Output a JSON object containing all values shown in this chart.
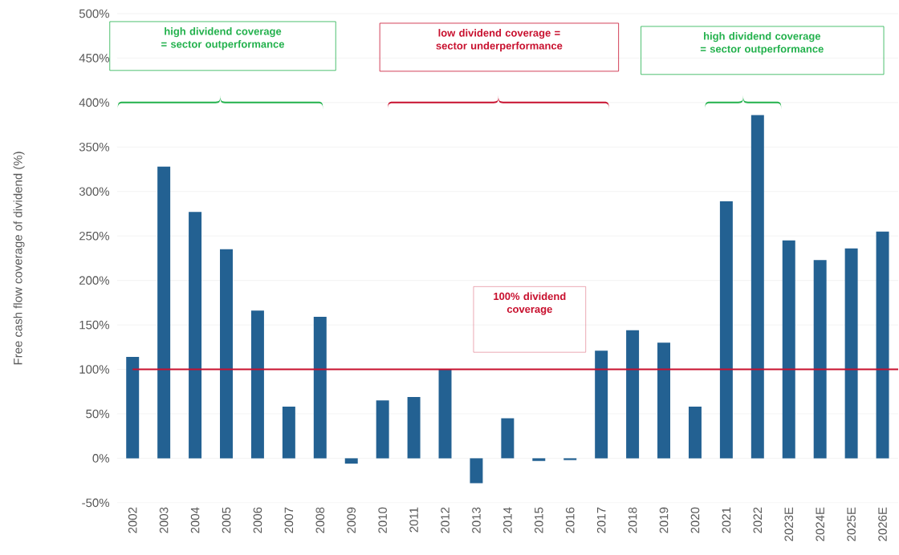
{
  "chart_data": {
    "type": "bar",
    "ylabel": "Free cash flow coverage of dividend (%)",
    "categories": [
      "2002",
      "2003",
      "2004",
      "2005",
      "2006",
      "2007",
      "2008",
      "2009",
      "2010",
      "2011",
      "2012",
      "2013",
      "2014",
      "2015",
      "2016",
      "2017",
      "2018",
      "2019",
      "2020",
      "2021",
      "2022",
      "2023E",
      "2024E",
      "2025E",
      "2026E"
    ],
    "values": [
      114,
      328,
      277,
      235,
      166,
      58,
      159,
      -6,
      65,
      69,
      100,
      -28,
      45,
      -3,
      -2,
      121,
      144,
      130,
      58,
      289,
      386,
      245,
      223,
      236,
      255
    ],
    "color": "#236192",
    "ylim": [
      -50,
      500
    ],
    "yticks": [
      {
        "value": -50,
        "label": "-50%"
      },
      {
        "value": 0,
        "label": "0%"
      },
      {
        "value": 50,
        "label": "50%"
      },
      {
        "value": 100,
        "label": "100%"
      },
      {
        "value": 150,
        "label": "150%"
      },
      {
        "value": 200,
        "label": "200%"
      },
      {
        "value": 250,
        "label": "250%"
      },
      {
        "value": 300,
        "label": "300%"
      },
      {
        "value": 350,
        "label": "350%"
      },
      {
        "value": 400,
        "label": "400%"
      },
      {
        "value": 450,
        "label": "450%"
      },
      {
        "value": 500,
        "label": "500%"
      }
    ],
    "grid": "y",
    "ref_lines": [
      {
        "axis": "y",
        "value": 100,
        "label": "100%  dividend coverage",
        "color": "#c8102e"
      }
    ],
    "annotations": [
      "high dividend coverage = sector outperformance",
      "low dividend coverage = sector underperformance",
      "high dividend coverage = sector outperformance"
    ]
  }
}
